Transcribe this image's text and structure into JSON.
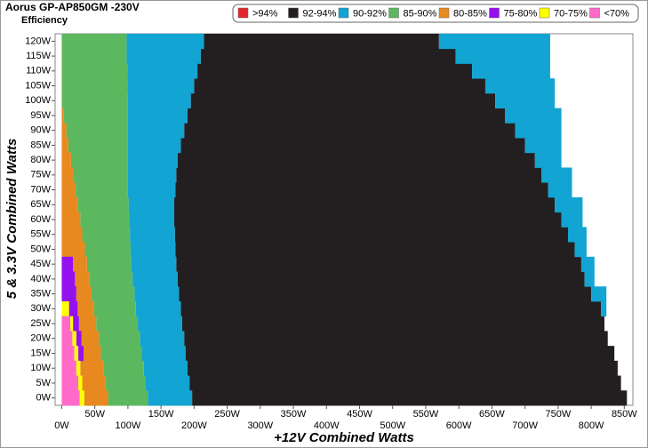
{
  "chart_data": {
    "type": "range-map",
    "title": "Aorus GP-AP850GM -230V",
    "subtitle": "Efficiency",
    "x_label": "+12V Combined Watts",
    "y_label": "5 & 3.3V Combined Watts",
    "xlim": [
      -10,
      863
    ],
    "ylim": [
      -2.5,
      122.5
    ],
    "xticks": [
      {
        "value": 0,
        "label": "0W"
      },
      {
        "value": 50,
        "label": "50W"
      },
      {
        "value": 100,
        "label": "100W"
      },
      {
        "value": 150,
        "label": "150W"
      },
      {
        "value": 200,
        "label": "200W"
      },
      {
        "value": 250,
        "label": "250W"
      },
      {
        "value": 300,
        "label": "300W"
      },
      {
        "value": 350,
        "label": "350W"
      },
      {
        "value": 400,
        "label": "400W"
      },
      {
        "value": 450,
        "label": "450W"
      },
      {
        "value": 500,
        "label": "500W"
      },
      {
        "value": 550,
        "label": "550W"
      },
      {
        "value": 600,
        "label": "600W"
      },
      {
        "value": 650,
        "label": "650W"
      },
      {
        "value": 700,
        "label": "700W"
      },
      {
        "value": 750,
        "label": "750W"
      },
      {
        "value": 800,
        "label": "800W"
      },
      {
        "value": 850,
        "label": "850W"
      }
    ],
    "yticks": [
      {
        "value": 0,
        "label": "0W"
      },
      {
        "value": 5,
        "label": "5W"
      },
      {
        "value": 10,
        "label": "10W"
      },
      {
        "value": 15,
        "label": "15W"
      },
      {
        "value": 20,
        "label": "20W"
      },
      {
        "value": 25,
        "label": "25W"
      },
      {
        "value": 30,
        "label": "30W"
      },
      {
        "value": 35,
        "label": "35W"
      },
      {
        "value": 40,
        "label": "40W"
      },
      {
        "value": 45,
        "label": "45W"
      },
      {
        "value": 50,
        "label": "50W"
      },
      {
        "value": 55,
        "label": "55W"
      },
      {
        "value": 60,
        "label": "60W"
      },
      {
        "value": 65,
        "label": "65W"
      },
      {
        "value": 70,
        "label": "70W"
      },
      {
        "value": 75,
        "label": "75W"
      },
      {
        "value": 80,
        "label": "80W"
      },
      {
        "value": 85,
        "label": "85W"
      },
      {
        "value": 90,
        "label": "90W"
      },
      {
        "value": 95,
        "label": "95W"
      },
      {
        "value": 100,
        "label": "100W"
      },
      {
        "value": 105,
        "label": "105W"
      },
      {
        "value": 110,
        "label": "110W"
      },
      {
        "value": 115,
        "label": "115W"
      },
      {
        "value": 120,
        "label": "120W"
      }
    ],
    "y": [
      0,
      5,
      10,
      15,
      20,
      25,
      30,
      35,
      40,
      45,
      50,
      55,
      60,
      65,
      70,
      75,
      80,
      85,
      90,
      95,
      100,
      105,
      110,
      115,
      120
    ],
    "series": [
      {
        "name": ">94%",
        "color": "#e3262c",
        "values": [
          [],
          [],
          [],
          [],
          [],
          [],
          [],
          [],
          [],
          [],
          [],
          [],
          [],
          [],
          [],
          [],
          [],
          [],
          [],
          [],
          [],
          [],
          [],
          [],
          []
        ]
      },
      {
        "name": "92-94%",
        "color": "#231f20",
        "values": [
          [
            [
              197,
              854
            ]
          ],
          [
            [
              193,
              845
            ]
          ],
          [
            [
              190,
              840
            ]
          ],
          [
            [
              187,
              835
            ]
          ],
          [
            [
              185,
              825
            ]
          ],
          [
            [
              182,
              820
            ]
          ],
          [
            [
              180,
              815
            ]
          ],
          [
            [
              177,
              800
            ]
          ],
          [
            [
              175,
              790
            ]
          ],
          [
            [
              173,
              785
            ]
          ],
          [
            [
              172,
              775
            ]
          ],
          [
            [
              171,
              765
            ]
          ],
          [
            [
              170,
              755
            ]
          ],
          [
            [
              170,
              745
            ]
          ],
          [
            [
              172,
              735
            ]
          ],
          [
            [
              173,
              725
            ]
          ],
          [
            [
              175,
              715
            ]
          ],
          [
            [
              180,
              700
            ]
          ],
          [
            [
              185,
              685
            ]
          ],
          [
            [
              190,
              670
            ]
          ],
          [
            [
              195,
              655
            ]
          ],
          [
            [
              200,
              640
            ]
          ],
          [
            [
              205,
              620
            ]
          ],
          [
            [
              210,
              595
            ]
          ],
          [
            [
              215,
              570
            ]
          ]
        ]
      },
      {
        "name": "90-92%",
        "color": "#12a4d2",
        "values": [
          [
            [
              130,
              197
            ]
          ],
          [
            [
              127,
              193
            ]
          ],
          [
            [
              124,
              190
            ]
          ],
          [
            [
              121,
              187
            ]
          ],
          [
            [
              118,
              185
            ]
          ],
          [
            [
              115,
              182
            ]
          ],
          [
            [
              112,
              180
            ],
            [
              815,
              823
            ]
          ],
          [
            [
              110,
              177
            ],
            [
              800,
              823
            ]
          ],
          [
            [
              107,
              175
            ],
            [
              790,
              805
            ]
          ],
          [
            [
              105,
              173
            ],
            [
              785,
              805
            ]
          ],
          [
            [
              104,
              172
            ],
            [
              775,
              793
            ]
          ],
          [
            [
              103,
              171
            ],
            [
              765,
              793
            ]
          ],
          [
            [
              102,
              170
            ],
            [
              755,
              787
            ]
          ],
          [
            [
              101,
              170
            ],
            [
              745,
              787
            ]
          ],
          [
            [
              100,
              172
            ],
            [
              735,
              771
            ]
          ],
          [
            [
              100,
              173
            ],
            [
              725,
              771
            ]
          ],
          [
            [
              100,
              175
            ],
            [
              715,
              755
            ]
          ],
          [
            [
              100,
              180
            ],
            [
              700,
              755
            ]
          ],
          [
            [
              100,
              185
            ],
            [
              685,
              755
            ]
          ],
          [
            [
              100,
              190
            ],
            [
              670,
              755
            ]
          ],
          [
            [
              100,
              195
            ],
            [
              655,
              745
            ]
          ],
          [
            [
              99,
              200
            ],
            [
              640,
              745
            ]
          ],
          [
            [
              99,
              205
            ],
            [
              620,
              738
            ]
          ],
          [
            [
              98,
              210
            ],
            [
              595,
              738
            ]
          ],
          [
            [
              98,
              215
            ],
            [
              570,
              738
            ]
          ]
        ]
      },
      {
        "name": "85-90%",
        "color": "#5cb85f",
        "values": [
          [
            [
              70,
              130
            ]
          ],
          [
            [
              66,
              127
            ]
          ],
          [
            [
              63,
              124
            ]
          ],
          [
            [
              59,
              121
            ]
          ],
          [
            [
              56,
              118
            ]
          ],
          [
            [
              52,
              115
            ]
          ],
          [
            [
              49,
              112
            ]
          ],
          [
            [
              45,
              110
            ]
          ],
          [
            [
              42,
              107
            ]
          ],
          [
            [
              38,
              105
            ]
          ],
          [
            [
              35,
              104
            ]
          ],
          [
            [
              31,
              103
            ]
          ],
          [
            [
              28,
              102
            ]
          ],
          [
            [
              24,
              101
            ]
          ],
          [
            [
              21,
              100
            ]
          ],
          [
            [
              17,
              100
            ]
          ],
          [
            [
              14,
              100
            ]
          ],
          [
            [
              10,
              100
            ]
          ],
          [
            [
              7,
              100
            ]
          ],
          [
            [
              3,
              100
            ]
          ],
          [
            [
              0,
              100
            ]
          ],
          [
            [
              0,
              99
            ]
          ],
          [
            [
              0,
              99
            ]
          ],
          [
            [
              0,
              98
            ]
          ],
          [
            [
              0,
              98
            ]
          ]
        ]
      },
      {
        "name": "80-85%",
        "color": "#e8891f",
        "values": [
          [
            [
              34,
              70
            ]
          ],
          [
            [
              31,
              66
            ]
          ],
          [
            [
              28,
              63
            ]
          ],
          [
            [
              33,
              59
            ]
          ],
          [
            [
              30,
              56
            ]
          ],
          [
            [
              26,
              52
            ]
          ],
          [
            [
              24,
              49
            ]
          ],
          [
            [
              22,
              45
            ]
          ],
          [
            [
              20,
              42
            ]
          ],
          [
            [
              17,
              38
            ]
          ],
          [
            [
              0,
              35
            ]
          ],
          [
            [
              0,
              31
            ]
          ],
          [
            [
              0,
              28
            ]
          ],
          [
            [
              0,
              24
            ]
          ],
          [
            [
              0,
              21
            ]
          ],
          [
            [
              0,
              17
            ]
          ],
          [
            [
              0,
              14
            ]
          ],
          [
            [
              0,
              10
            ]
          ],
          [
            [
              0,
              7
            ]
          ],
          [
            [
              0,
              3
            ]
          ],
          [],
          [],
          [],
          [],
          []
        ]
      },
      {
        "name": "75-80%",
        "color": "#9410ee",
        "values": [
          [],
          [],
          [],
          [
            [
              25,
              33
            ]
          ],
          [
            [
              22,
              30
            ]
          ],
          [
            [
              17,
              26
            ]
          ],
          [
            [
              11,
              24
            ]
          ],
          [
            [
              0,
              22
            ]
          ],
          [
            [
              0,
              20
            ]
          ],
          [
            [
              0,
              17
            ]
          ],
          [],
          [],
          [],
          [],
          [],
          [],
          [],
          [],
          [],
          [],
          [],
          [],
          [],
          [],
          []
        ]
      },
      {
        "name": "70-75%",
        "color": "#ffff00",
        "values": [
          [
            [
              27,
              34
            ]
          ],
          [
            [
              25,
              31
            ]
          ],
          [
            [
              22,
              28
            ]
          ],
          [
            [
              19,
              25
            ]
          ],
          [
            [
              16,
              22
            ]
          ],
          [
            [
              13,
              17
            ]
          ],
          [
            [
              0,
              11
            ]
          ],
          [],
          [],
          [],
          [],
          [],
          [],
          [],
          [],
          [],
          [],
          [],
          [],
          [],
          [],
          [],
          [],
          [],
          []
        ]
      },
      {
        "name": "<70%",
        "color": "#ff6ac8",
        "values": [
          [
            [
              0,
              27
            ]
          ],
          [
            [
              0,
              25
            ]
          ],
          [
            [
              0,
              22
            ]
          ],
          [
            [
              0,
              19
            ]
          ],
          [
            [
              0,
              16
            ]
          ],
          [
            [
              0,
              13
            ]
          ],
          [],
          [],
          [],
          [],
          [],
          [],
          [],
          [],
          [],
          [],
          [],
          [],
          [],
          [],
          [],
          [],
          [],
          [],
          []
        ]
      }
    ]
  }
}
